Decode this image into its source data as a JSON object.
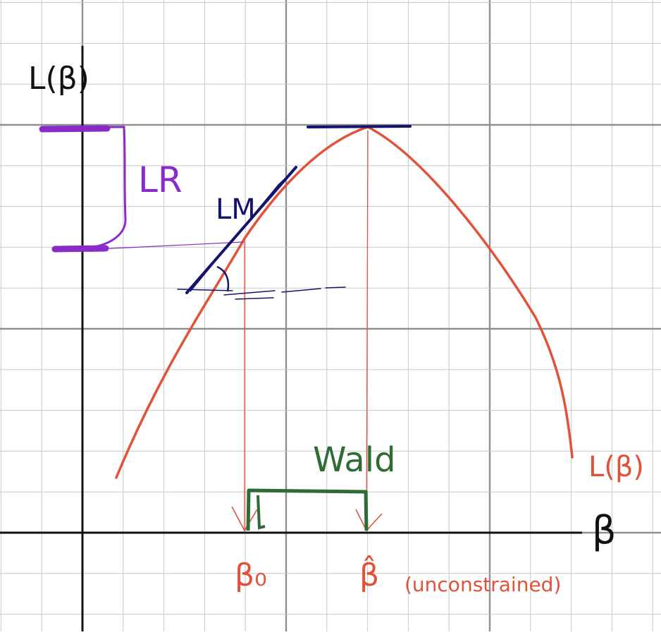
{
  "labels": {
    "y_axis": "L(β)",
    "x_axis": "β",
    "lr": "LR",
    "lm": "LM",
    "wald": "Wald",
    "curve": "L(β)",
    "beta_zero": "β₀",
    "beta_hat": "β̂",
    "unconstrained": "(unconstrained)"
  },
  "colors": {
    "grid_minor": "#c8c8c8",
    "grid_major": "#8f8f8f",
    "axis": "#111111",
    "curve": "#e0533a",
    "lr": "#8a2bc9",
    "lm": "#14146e",
    "wald": "#2f6b35",
    "background": "#ffffff"
  }
}
